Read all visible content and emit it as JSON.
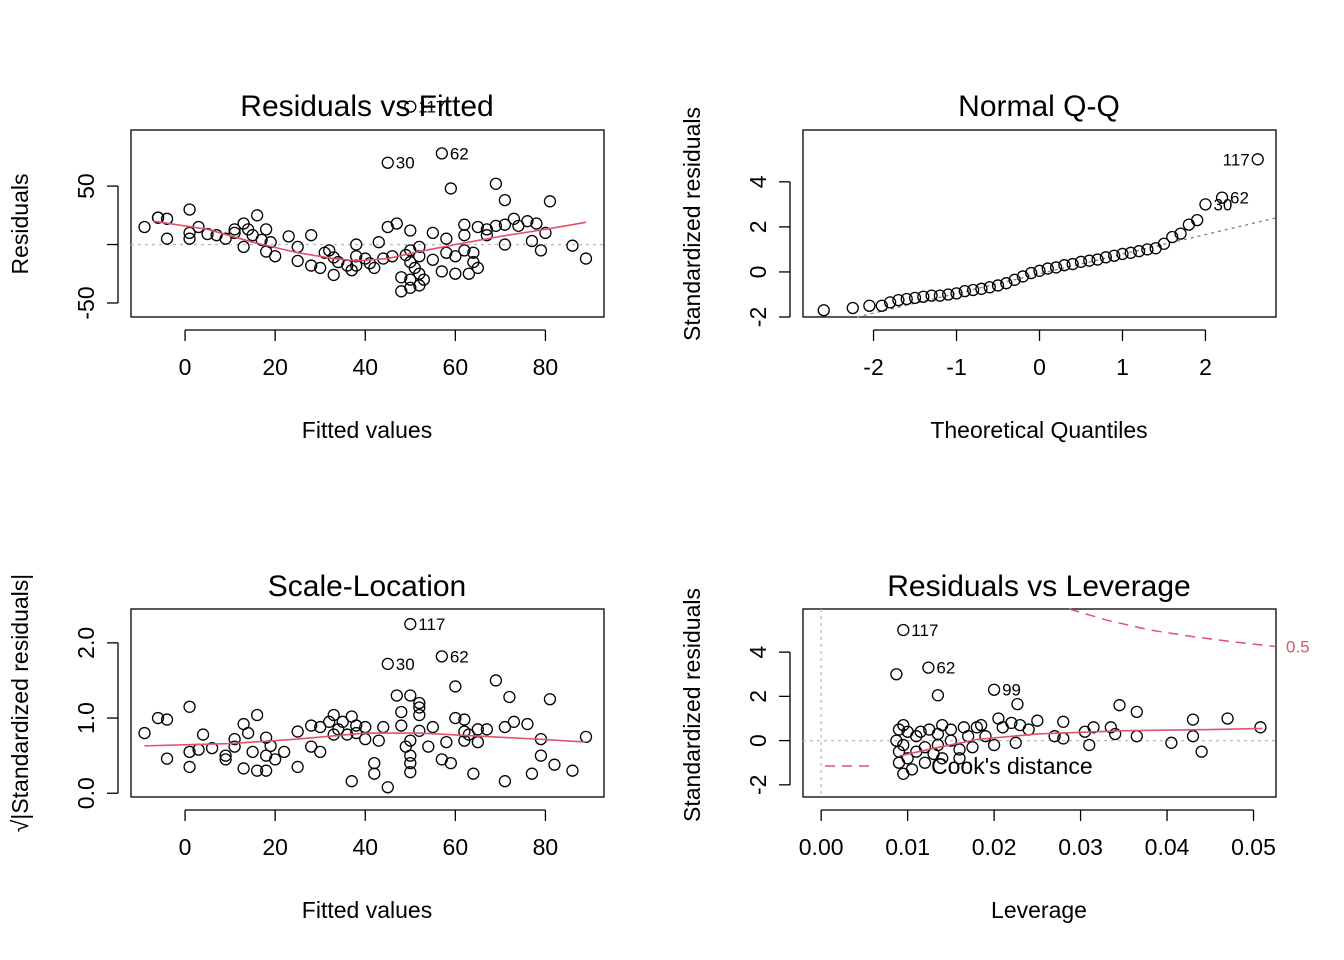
{
  "chart_data": [
    {
      "type": "scatter",
      "title": "Residuals vs Fitted",
      "xlabel": "Fitted values",
      "ylabel": "Residuals",
      "xlim": [
        -12,
        93
      ],
      "ylim": [
        -62,
        98
      ],
      "xticks": [
        0,
        20,
        40,
        60,
        80
      ],
      "yticks": [
        -50,
        0,
        50
      ],
      "ytick_labels_visible": [
        "-50",
        "",
        "50"
      ],
      "reference_line": {
        "y": 0,
        "style": "dotted",
        "color": "#bbbbbb"
      },
      "points": [
        [
          -9,
          15
        ],
        [
          -6,
          23
        ],
        [
          -4,
          22
        ],
        [
          -4,
          5
        ],
        [
          1,
          30
        ],
        [
          1,
          5
        ],
        [
          1,
          10
        ],
        [
          3,
          15
        ],
        [
          5,
          9
        ],
        [
          7,
          8
        ],
        [
          9,
          5
        ],
        [
          11,
          13
        ],
        [
          11,
          10
        ],
        [
          13,
          18
        ],
        [
          13,
          -2
        ],
        [
          14,
          13
        ],
        [
          15,
          8
        ],
        [
          16,
          25
        ],
        [
          17,
          4
        ],
        [
          18,
          13
        ],
        [
          18,
          -6
        ],
        [
          19,
          2
        ],
        [
          20,
          -10
        ],
        [
          23,
          7
        ],
        [
          25,
          -2
        ],
        [
          25,
          -14
        ],
        [
          28,
          8
        ],
        [
          28,
          -18
        ],
        [
          30,
          -20
        ],
        [
          31,
          -7
        ],
        [
          32,
          -5
        ],
        [
          33,
          -11
        ],
        [
          33,
          -26
        ],
        [
          34,
          -15
        ],
        [
          36,
          -18
        ],
        [
          37,
          -22
        ],
        [
          38,
          -10
        ],
        [
          38,
          -18
        ],
        [
          38,
          0
        ],
        [
          40,
          -12
        ],
        [
          41,
          -16
        ],
        [
          42,
          -20
        ],
        [
          43,
          2
        ],
        [
          44,
          -12
        ],
        [
          45,
          15
        ],
        [
          46,
          -10
        ],
        [
          47,
          18
        ],
        [
          48,
          -40
        ],
        [
          48,
          -28
        ],
        [
          49,
          -9
        ],
        [
          50,
          -37
        ],
        [
          50,
          -30
        ],
        [
          50,
          -15
        ],
        [
          50,
          -5
        ],
        [
          50,
          12
        ],
        [
          51,
          -20
        ],
        [
          52,
          -2
        ],
        [
          52,
          -10
        ],
        [
          52,
          -25
        ],
        [
          52,
          -35
        ],
        [
          53,
          -30
        ],
        [
          55,
          10
        ],
        [
          55,
          -13
        ],
        [
          57,
          -23
        ],
        [
          58,
          -7
        ],
        [
          58,
          5
        ],
        [
          60,
          -10
        ],
        [
          60,
          -25
        ],
        [
          62,
          -5
        ],
        [
          62,
          8
        ],
        [
          62,
          17
        ],
        [
          63,
          -25
        ],
        [
          64,
          -15
        ],
        [
          64,
          -7
        ],
        [
          65,
          -20
        ],
        [
          65,
          15
        ],
        [
          67,
          8
        ],
        [
          67,
          13
        ],
        [
          69,
          16
        ],
        [
          71,
          17
        ],
        [
          71,
          0
        ],
        [
          73,
          22
        ],
        [
          74,
          16
        ],
        [
          76,
          20
        ],
        [
          77,
          3
        ],
        [
          78,
          18
        ],
        [
          79,
          -5
        ],
        [
          80,
          10
        ],
        [
          86,
          -1
        ],
        [
          89,
          -12
        ]
      ],
      "outliers": [
        {
          "label": "117",
          "x": 50,
          "y": 118
        },
        {
          "label": "62",
          "x": 57,
          "y": 78
        },
        {
          "label": "30",
          "x": 45,
          "y": 70
        }
      ],
      "extra_points": [
        [
          59,
          48
        ],
        [
          69,
          52
        ],
        [
          71,
          38
        ],
        [
          81,
          37
        ],
        [
          -6,
          23
        ]
      ],
      "smoother": {
        "color": "#df536b",
        "x": [
          -7,
          5,
          15,
          25,
          33,
          38,
          45,
          52,
          60,
          70,
          80,
          89
        ],
        "y": [
          20,
          13,
          2,
          -7,
          -12,
          -14,
          -12,
          -6,
          0,
          7,
          13,
          19
        ]
      }
    },
    {
      "type": "scatter",
      "title": "Normal Q-Q",
      "xlabel": "Theoretical Quantiles",
      "ylabel": "Standardized residuals",
      "xlim": [
        -2.85,
        2.85
      ],
      "ylim": [
        -2.0,
        6.3
      ],
      "xticks": [
        -2,
        -1,
        0,
        1,
        2
      ],
      "yticks": [
        -2,
        0,
        2,
        4
      ],
      "reference_line": {
        "style": "dotted",
        "color": "#808080",
        "from": [
          -2.2,
          -2.0
        ],
        "to": [
          2.85,
          2.4
        ]
      },
      "points": [
        [
          -2.6,
          -1.7
        ],
        [
          -2.25,
          -1.6
        ],
        [
          -2.05,
          -1.5
        ],
        [
          -1.9,
          -1.5
        ],
        [
          -1.8,
          -1.35
        ],
        [
          -1.7,
          -1.25
        ],
        [
          -1.6,
          -1.2
        ],
        [
          -1.5,
          -1.15
        ],
        [
          -1.4,
          -1.1
        ],
        [
          -1.3,
          -1.05
        ],
        [
          -1.2,
          -1.05
        ],
        [
          -1.1,
          -1.0
        ],
        [
          -1.0,
          -0.95
        ],
        [
          -0.9,
          -0.85
        ],
        [
          -0.8,
          -0.8
        ],
        [
          -0.7,
          -0.75
        ],
        [
          -0.6,
          -0.68
        ],
        [
          -0.5,
          -0.6
        ],
        [
          -0.4,
          -0.5
        ],
        [
          -0.3,
          -0.35
        ],
        [
          -0.2,
          -0.2
        ],
        [
          -0.1,
          -0.05
        ],
        [
          0.0,
          0.05
        ],
        [
          0.1,
          0.15
        ],
        [
          0.2,
          0.2
        ],
        [
          0.3,
          0.3
        ],
        [
          0.4,
          0.35
        ],
        [
          0.5,
          0.45
        ],
        [
          0.6,
          0.5
        ],
        [
          0.7,
          0.55
        ],
        [
          0.8,
          0.65
        ],
        [
          0.9,
          0.72
        ],
        [
          1.0,
          0.8
        ],
        [
          1.1,
          0.85
        ],
        [
          1.2,
          0.92
        ],
        [
          1.3,
          1.0
        ],
        [
          1.4,
          1.05
        ],
        [
          1.5,
          1.25
        ],
        [
          1.6,
          1.55
        ],
        [
          1.7,
          1.7
        ],
        [
          1.8,
          2.1
        ],
        [
          1.9,
          2.3
        ]
      ],
      "outliers": [
        {
          "label": "117",
          "x": 2.63,
          "y": 5.0
        },
        {
          "label": "62",
          "x": 2.2,
          "y": 3.3
        },
        {
          "label": "30",
          "x": 2.0,
          "y": 3.0
        }
      ]
    },
    {
      "type": "scatter",
      "title": "Scale-Location",
      "xlabel": "Fitted values",
      "ylabel": "√|Standardized residuals|",
      "xlim": [
        -12,
        93
      ],
      "ylim": [
        -0.05,
        2.45
      ],
      "xticks": [
        0,
        20,
        40,
        60,
        80
      ],
      "yticks": [
        0.0,
        1.0,
        2.0
      ],
      "ytick_labels": [
        "0.0",
        "1.0",
        "2.0"
      ],
      "points": [
        [
          -9,
          0.8
        ],
        [
          -6,
          1.0
        ],
        [
          -4,
          0.98
        ],
        [
          -4,
          0.46
        ],
        [
          1,
          1.15
        ],
        [
          1,
          0.55
        ],
        [
          1,
          0.35
        ],
        [
          3,
          0.58
        ],
        [
          4,
          0.78
        ],
        [
          6,
          0.6
        ],
        [
          9,
          0.5
        ],
        [
          9,
          0.45
        ],
        [
          11,
          0.62
        ],
        [
          11,
          0.72
        ],
        [
          13,
          0.92
        ],
        [
          13,
          0.33
        ],
        [
          14,
          0.8
        ],
        [
          15,
          0.55
        ],
        [
          16,
          1.04
        ],
        [
          16,
          0.3
        ],
        [
          18,
          0.74
        ],
        [
          18,
          0.5
        ],
        [
          18,
          0.3
        ],
        [
          19,
          0.63
        ],
        [
          20,
          0.45
        ],
        [
          22,
          0.55
        ],
        [
          25,
          0.82
        ],
        [
          25,
          0.35
        ],
        [
          28,
          0.9
        ],
        [
          28,
          0.62
        ],
        [
          30,
          0.55
        ],
        [
          30,
          0.88
        ],
        [
          32,
          0.95
        ],
        [
          33,
          0.78
        ],
        [
          33,
          1.04
        ],
        [
          34,
          0.85
        ],
        [
          35,
          0.95
        ],
        [
          36,
          0.78
        ],
        [
          37,
          0.16
        ],
        [
          37,
          1.02
        ],
        [
          38,
          0.8
        ],
        [
          38,
          0.9
        ],
        [
          40,
          0.72
        ],
        [
          40,
          0.88
        ],
        [
          42,
          0.4
        ],
        [
          42,
          0.26
        ],
        [
          43,
          0.7
        ],
        [
          44,
          0.88
        ],
        [
          45,
          0.08
        ],
        [
          47,
          1.3
        ],
        [
          48,
          1.08
        ],
        [
          48,
          0.9
        ],
        [
          49,
          0.62
        ],
        [
          50,
          0.7
        ],
        [
          50,
          1.3
        ],
        [
          50,
          0.5
        ],
        [
          50,
          0.28
        ],
        [
          50,
          0.4
        ],
        [
          52,
          1.2
        ],
        [
          52,
          0.83
        ],
        [
          52,
          1.04
        ],
        [
          52,
          1.14
        ],
        [
          54,
          0.62
        ],
        [
          55,
          0.88
        ],
        [
          57,
          0.45
        ],
        [
          58,
          0.68
        ],
        [
          59,
          0.4
        ],
        [
          60,
          1.0
        ],
        [
          60,
          1.42
        ],
        [
          62,
          0.82
        ],
        [
          62,
          0.7
        ],
        [
          62,
          0.98
        ],
        [
          63,
          0.78
        ],
        [
          64,
          0.26
        ],
        [
          65,
          0.85
        ],
        [
          65,
          0.68
        ],
        [
          67,
          0.85
        ],
        [
          69,
          1.5
        ],
        [
          71,
          0.88
        ],
        [
          71,
          0.16
        ],
        [
          72,
          1.28
        ],
        [
          73,
          0.95
        ],
        [
          76,
          0.92
        ],
        [
          77,
          0.26
        ],
        [
          79,
          0.5
        ],
        [
          79,
          0.72
        ],
        [
          81,
          1.25
        ],
        [
          82,
          0.38
        ],
        [
          86,
          0.3
        ],
        [
          89,
          0.75
        ]
      ],
      "outliers": [
        {
          "label": "117",
          "x": 50,
          "y": 2.25
        },
        {
          "label": "62",
          "x": 57,
          "y": 1.82
        },
        {
          "label": "30",
          "x": 45,
          "y": 1.72
        }
      ],
      "smoother": {
        "color": "#df536b",
        "x": [
          -9,
          10,
          25,
          40,
          52,
          65,
          78,
          89
        ],
        "y": [
          0.63,
          0.66,
          0.72,
          0.8,
          0.8,
          0.76,
          0.72,
          0.68
        ]
      }
    },
    {
      "type": "scatter",
      "title": "Residuals vs Leverage",
      "xlabel": "Leverage",
      "ylabel": "Standardized residuals",
      "xlim": [
        -0.0021,
        0.0526
      ],
      "ylim": [
        -2.55,
        5.95
      ],
      "xticks": [
        0.0,
        0.01,
        0.02,
        0.03,
        0.04,
        0.05
      ],
      "xtick_labels": [
        "0.00",
        "0.01",
        "0.02",
        "0.03",
        "0.04",
        "0.05"
      ],
      "yticks": [
        -2,
        0,
        2,
        4
      ],
      "reference_lines": [
        {
          "y": 0,
          "style": "dotted",
          "color": "#bbbbbb"
        },
        {
          "x": 0,
          "style": "dotted",
          "color": "#bbbbbb"
        }
      ],
      "points": [
        [
          0.0087,
          0.0
        ],
        [
          0.009,
          0.5
        ],
        [
          0.009,
          -0.5
        ],
        [
          0.009,
          -1.0
        ],
        [
          0.0095,
          -1.5
        ],
        [
          0.0095,
          0.7
        ],
        [
          0.0095,
          -0.2
        ],
        [
          0.01,
          -0.8
        ],
        [
          0.01,
          0.4
        ],
        [
          0.0105,
          -1.3
        ],
        [
          0.011,
          -0.5
        ],
        [
          0.011,
          0.2
        ],
        [
          0.0115,
          0.4
        ],
        [
          0.012,
          -0.3
        ],
        [
          0.012,
          -1.0
        ],
        [
          0.0125,
          0.5
        ],
        [
          0.013,
          -0.6
        ],
        [
          0.0135,
          0.3
        ],
        [
          0.0135,
          -0.2
        ],
        [
          0.014,
          0.7
        ],
        [
          0.014,
          -0.8
        ],
        [
          0.015,
          0.5
        ],
        [
          0.015,
          0.0
        ],
        [
          0.016,
          -0.4
        ],
        [
          0.016,
          -0.8
        ],
        [
          0.0165,
          0.6
        ],
        [
          0.017,
          0.2
        ],
        [
          0.0175,
          -0.3
        ],
        [
          0.018,
          0.6
        ],
        [
          0.0185,
          0.7
        ],
        [
          0.019,
          0.2
        ],
        [
          0.02,
          -0.2
        ],
        [
          0.0205,
          1.0
        ],
        [
          0.021,
          0.6
        ],
        [
          0.022,
          0.8
        ],
        [
          0.0225,
          -0.1
        ],
        [
          0.023,
          0.7
        ],
        [
          0.024,
          0.5
        ],
        [
          0.025,
          0.9
        ],
        [
          0.027,
          0.2
        ],
        [
          0.028,
          0.85
        ],
        [
          0.028,
          0.1
        ],
        [
          0.0305,
          0.4
        ],
        [
          0.031,
          -0.2
        ],
        [
          0.0315,
          0.6
        ],
        [
          0.0335,
          0.6
        ],
        [
          0.034,
          0.3
        ],
        [
          0.0345,
          1.6
        ],
        [
          0.0365,
          0.2
        ],
        [
          0.0365,
          1.3
        ],
        [
          0.0405,
          -0.1
        ],
        [
          0.043,
          0.2
        ],
        [
          0.043,
          0.95
        ],
        [
          0.044,
          -0.5
        ],
        [
          0.047,
          1.0
        ],
        [
          0.0508,
          0.6
        ]
      ],
      "outliers": [
        {
          "label": "117",
          "x": 0.0095,
          "y": 5.0
        },
        {
          "label": "62",
          "x": 0.0124,
          "y": 3.3
        },
        {
          "label": "99",
          "x": 0.02,
          "y": 2.3
        }
      ],
      "extra_points": [
        [
          0.0087,
          3.0
        ],
        [
          0.0135,
          2.05
        ],
        [
          0.0227,
          1.65
        ]
      ],
      "smoother": {
        "color": "#df536b",
        "x": [
          0.009,
          0.013,
          0.018,
          0.025,
          0.035,
          0.045,
          0.051
        ],
        "y": [
          -0.7,
          -0.35,
          0.05,
          0.3,
          0.45,
          0.5,
          0.55
        ]
      },
      "cooks_distance": {
        "legend": "Cook's distance",
        "contour_label": "0.5",
        "color": "#df536b",
        "x": [
          0.0287,
          0.033,
          0.038,
          0.043,
          0.048,
          0.0526
        ],
        "y": [
          5.95,
          5.45,
          5.0,
          4.7,
          4.45,
          4.25
        ]
      }
    }
  ]
}
